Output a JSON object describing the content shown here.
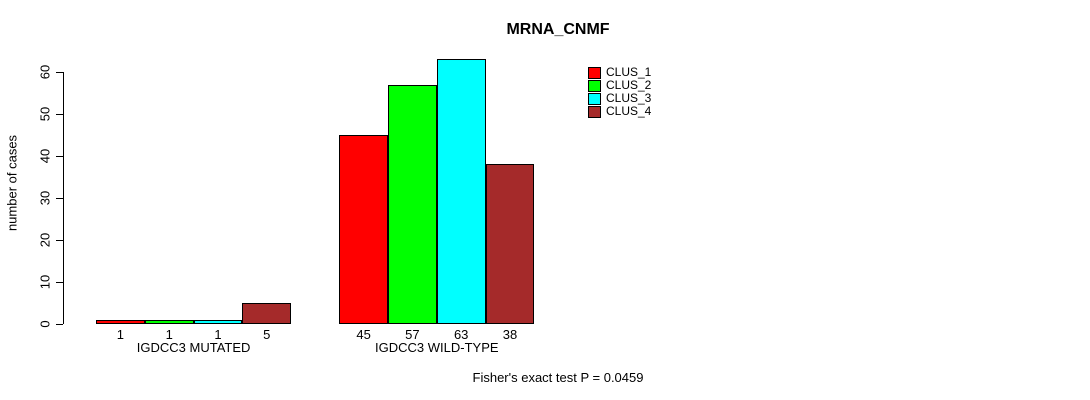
{
  "chart_data": {
    "type": "bar",
    "title": "MRNA_CNMF",
    "xlabel": "",
    "ylabel": "number of cases",
    "ylim": [
      0,
      63
    ],
    "yticks": [
      0,
      10,
      20,
      30,
      40,
      50,
      60
    ],
    "grid": false,
    "legend_position": "top-right",
    "categories": [
      "IGDCC3 MUTATED",
      "IGDCC3 WILD-TYPE"
    ],
    "series": [
      {
        "name": "CLUS_1",
        "color": "#FF0000",
        "values": [
          1,
          45
        ]
      },
      {
        "name": "CLUS_2",
        "color": "#00FF00",
        "values": [
          1,
          57
        ]
      },
      {
        "name": "CLUS_3",
        "color": "#00FFFF",
        "values": [
          1,
          63
        ]
      },
      {
        "name": "CLUS_4",
        "color": "#A52A2A",
        "values": [
          5,
          38
        ]
      }
    ],
    "bar_value_labels": true,
    "annotation": "Fisher's exact test P = 0.0459"
  }
}
